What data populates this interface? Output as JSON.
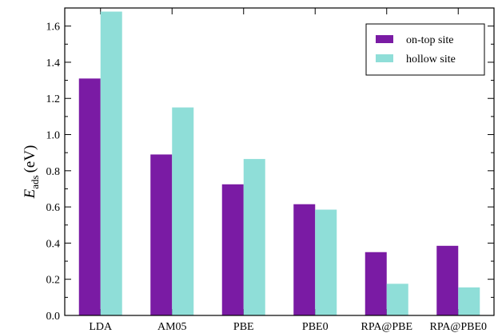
{
  "chart_data": {
    "type": "bar",
    "categories": [
      "LDA",
      "AM05",
      "PBE",
      "PBE0",
      "RPA@PBE",
      "RPA@PBE0"
    ],
    "series": [
      {
        "name": "on-top site",
        "color": "#7a1ba4",
        "values": [
          1.31,
          0.89,
          0.725,
          0.615,
          0.35,
          0.385
        ]
      },
      {
        "name": "hollow site",
        "color": "#8fded8",
        "values": [
          1.68,
          1.15,
          0.865,
          0.585,
          0.175,
          0.155
        ]
      }
    ],
    "ylabel": {
      "main": "E",
      "sub": "ads",
      "unit": "(eV)"
    },
    "ylim": [
      0,
      1.7
    ],
    "yticks": [
      "0.0",
      "0.2",
      "0.4",
      "0.6",
      "0.8",
      "1.0",
      "1.2",
      "1.4",
      "1.6"
    ],
    "legend": {
      "position": "top-right"
    },
    "grid": false
  }
}
